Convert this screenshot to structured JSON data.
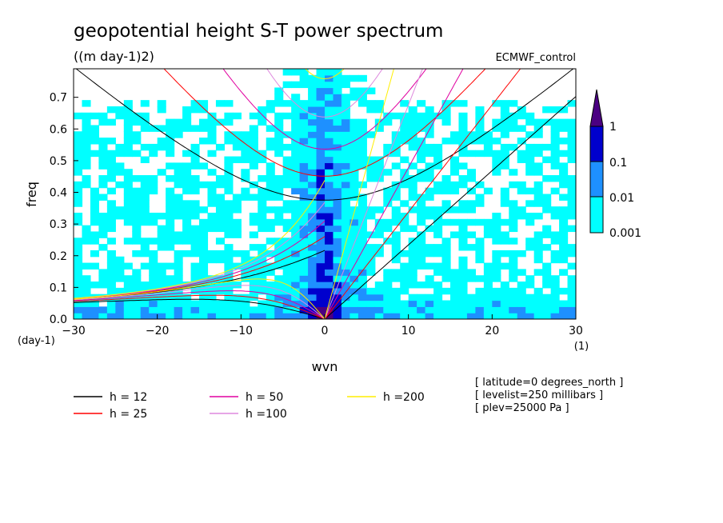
{
  "chart_data": {
    "type": "heatmap",
    "title": "geopotential height S-T power spectrum",
    "subtitle": "((m day-1)2)",
    "dataset_label": "ECMWF_control",
    "xlabel": "wvn",
    "x_unit": "(1)",
    "ylabel": "freq",
    "y_unit": "(day-1)",
    "xlim": [
      -30,
      30
    ],
    "ylim": [
      0,
      0.79
    ],
    "x_ticks": [
      -30,
      -20,
      -10,
      0,
      10,
      20,
      30
    ],
    "y_ticks": [
      0.0,
      0.1,
      0.2,
      0.3,
      0.4,
      0.5,
      0.6,
      0.7
    ],
    "colorbar": {
      "levels": [
        0.001,
        0.01,
        0.1,
        1
      ],
      "labels": [
        "0.001",
        "0.01",
        "0.1",
        "1"
      ],
      "colors": [
        "#ffffff",
        "#00ffff",
        "#1e90ff",
        "#0000cd",
        "#4b0082"
      ]
    },
    "dispersion_curves": [
      {
        "label": "h = 12",
        "h": 12,
        "color": "#000000"
      },
      {
        "label": "h = 25",
        "h": 25,
        "color": "#ff0000"
      },
      {
        "label": "h = 50",
        "h": 50,
        "color": "#e000a0"
      },
      {
        "label": "h =100",
        "h": 100,
        "color": "#dd88dd"
      },
      {
        "label": "h =200",
        "h": 200,
        "color": "#ffee00"
      }
    ],
    "annotations": [
      "[ latitude=0 degrees_north ]",
      "[ levelist=250 millibars ]",
      "[ plev=25000 Pa ]"
    ]
  }
}
